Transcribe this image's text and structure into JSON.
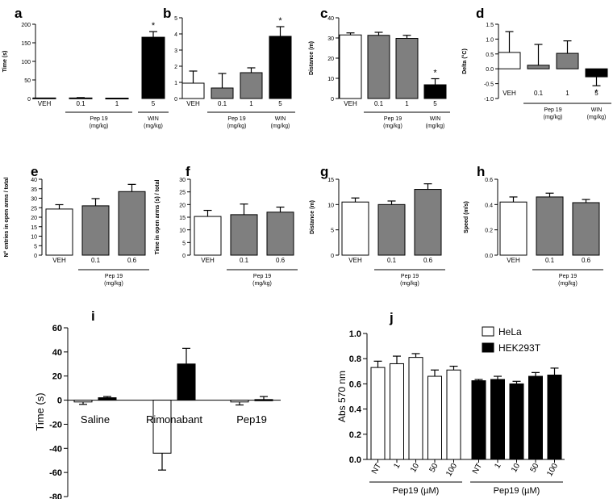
{
  "chart_data": [
    {
      "panel": "a",
      "type": "bar",
      "ylabel": "Time (s)",
      "ylim": [
        0,
        200
      ],
      "yticks": [
        0,
        50,
        100,
        150,
        200
      ],
      "categories": [
        "VEH",
        "0.1",
        "1",
        "5"
      ],
      "values": [
        1.5,
        1.5,
        1,
        165
      ],
      "errors": [
        0,
        1,
        0,
        15
      ],
      "fills": [
        "white",
        "gray",
        "gray",
        "black"
      ],
      "stars": [
        "",
        "",
        "",
        "*"
      ],
      "groups": [
        {
          "label": "Pep 19",
          "unit": "(mg/kg)",
          "from": 1,
          "to": 2
        },
        {
          "label": "WIN",
          "unit": "(mg/kg)",
          "from": 3,
          "to": 3
        }
      ]
    },
    {
      "panel": "b",
      "type": "bar",
      "ylabel": "Time (s)",
      "ylim": [
        0,
        5
      ],
      "yticks": [
        0,
        1,
        2,
        3,
        4,
        5
      ],
      "categories": [
        "VEH",
        "0.1",
        "1",
        "5"
      ],
      "values": [
        0.95,
        0.65,
        1.6,
        3.85
      ],
      "errors": [
        0.75,
        0.9,
        0.3,
        0.6
      ],
      "fills": [
        "white",
        "gray",
        "gray",
        "black"
      ],
      "stars": [
        "",
        "",
        "",
        "*"
      ],
      "groups": [
        {
          "label": "Pep 19",
          "unit": "(mg/kg)",
          "from": 1,
          "to": 2
        },
        {
          "label": "WIN",
          "unit": "(mg/kg)",
          "from": 3,
          "to": 3
        }
      ]
    },
    {
      "panel": "c",
      "type": "bar",
      "ylabel": "Distance (m)",
      "ylim": [
        0,
        40
      ],
      "yticks": [
        0,
        10,
        20,
        30,
        40
      ],
      "categories": [
        "VEH",
        "0.1",
        "1",
        "5"
      ],
      "values": [
        31.5,
        31.3,
        29.8,
        6.8
      ],
      "errors": [
        1,
        1.5,
        1.5,
        3
      ],
      "fills": [
        "white",
        "gray",
        "gray",
        "black"
      ],
      "stars": [
        "",
        "",
        "",
        "*"
      ],
      "groups": [
        {
          "label": "Pep 19",
          "unit": "(mg/kg)",
          "from": 1,
          "to": 2
        },
        {
          "label": "WIN",
          "unit": "(mg/kg)",
          "from": 3,
          "to": 3
        }
      ]
    },
    {
      "panel": "d",
      "type": "bar",
      "ylabel": "Delta (°C)",
      "ylim": [
        -1.0,
        1.5
      ],
      "yticks": [
        -1.0,
        -0.5,
        0.0,
        0.5,
        1.0,
        1.5
      ],
      "categories": [
        "VEH",
        "0.1",
        "1",
        "5"
      ],
      "values": [
        0.55,
        0.12,
        0.52,
        -0.27
      ],
      "errors": [
        0.7,
        0.7,
        0.42,
        0.3
      ],
      "fills": [
        "white",
        "gray",
        "gray",
        "black"
      ],
      "stars": [
        "",
        "",
        "",
        "*"
      ],
      "groups": [
        {
          "label": "Pep 19",
          "unit": "(mg/kg)",
          "from": 1,
          "to": 2
        },
        {
          "label": "WIN",
          "unit": "(mg/kg)",
          "from": 3,
          "to": 3
        }
      ]
    },
    {
      "panel": "e",
      "type": "bar",
      "ylabel": "N° entries in open arms / total",
      "ylim": [
        0,
        40
      ],
      "yticks": [
        0,
        5,
        10,
        15,
        20,
        25,
        30,
        35,
        40
      ],
      "categories": [
        "VEH",
        "0.1",
        "0.6"
      ],
      "values": [
        24.3,
        26,
        33.5
      ],
      "errors": [
        2.3,
        3.8,
        3.8
      ],
      "fills": [
        "white",
        "gray",
        "gray"
      ],
      "stars": [
        "",
        "",
        ""
      ],
      "groups": [
        {
          "label": "Pep 19",
          "unit": "(mg/kg)",
          "from": 1,
          "to": 2
        }
      ]
    },
    {
      "panel": "f",
      "type": "bar",
      "ylabel": "Time in open arms (s) / total",
      "ylim": [
        0,
        30
      ],
      "yticks": [
        0,
        5,
        10,
        15,
        20,
        25,
        30
      ],
      "categories": [
        "VEH",
        "0.1",
        "0.6"
      ],
      "values": [
        15.3,
        16,
        17
      ],
      "errors": [
        2.4,
        4.2,
        2
      ],
      "fills": [
        "white",
        "gray",
        "gray"
      ],
      "stars": [
        "",
        "",
        ""
      ],
      "groups": [
        {
          "label": "Pep 19",
          "unit": "(mg/kg)",
          "from": 1,
          "to": 2
        }
      ]
    },
    {
      "panel": "g",
      "type": "bar",
      "ylabel": "Distance (m)",
      "ylim": [
        0,
        15
      ],
      "yticks": [
        0,
        5,
        10,
        15
      ],
      "categories": [
        "VEH",
        "0.1",
        "0.6"
      ],
      "values": [
        10.5,
        10,
        13
      ],
      "errors": [
        0.8,
        0.7,
        1.1
      ],
      "fills": [
        "white",
        "gray",
        "gray"
      ],
      "stars": [
        "",
        "",
        ""
      ],
      "groups": [
        {
          "label": "Pep 19",
          "unit": "(mg/kg)",
          "from": 1,
          "to": 2
        }
      ]
    },
    {
      "panel": "h",
      "type": "bar",
      "ylabel": "Speed (m/s)",
      "ylim": [
        0,
        0.6
      ],
      "yticks": [
        0.0,
        0.2,
        0.4,
        0.6
      ],
      "categories": [
        "VEH",
        "0.1",
        "0.6"
      ],
      "values": [
        0.42,
        0.46,
        0.415
      ],
      "errors": [
        0.04,
        0.03,
        0.025
      ],
      "fills": [
        "white",
        "gray",
        "gray"
      ],
      "stars": [
        "",
        "",
        ""
      ],
      "groups": [
        {
          "label": "Pep 19",
          "unit": "(mg/kg)",
          "from": 1,
          "to": 2
        }
      ]
    },
    {
      "panel": "i",
      "type": "bar",
      "ylabel": "Time (s)",
      "ylim": [
        -80,
        60
      ],
      "yticks": [
        -80,
        -60,
        -40,
        -20,
        0,
        20,
        40,
        60
      ],
      "groups": [
        "Saline",
        "Rimonabant",
        "Pep19"
      ],
      "series": [
        {
          "fill": "white",
          "values": [
            -1.5,
            -44,
            -1.5
          ],
          "errors": [
            2,
            14,
            2.5
          ]
        },
        {
          "fill": "black",
          "values": [
            2,
            30,
            0.5
          ],
          "errors": [
            1,
            13,
            2.5
          ]
        }
      ]
    },
    {
      "panel": "j",
      "type": "bar",
      "ylabel": "Abs 570 nm",
      "ylim": [
        0,
        1.0
      ],
      "yticks": [
        0.0,
        0.2,
        0.4,
        0.6,
        0.8,
        1.0
      ],
      "legend": [
        {
          "name": "HeLa",
          "fill": "white"
        },
        {
          "name": "HEK293T",
          "fill": "black"
        }
      ],
      "blocks": [
        {
          "series": "HeLa",
          "fill": "white",
          "categories": [
            "NT",
            "1",
            "10",
            "50",
            "100"
          ],
          "values": [
            0.73,
            0.76,
            0.81,
            0.66,
            0.71
          ],
          "errors": [
            0.05,
            0.06,
            0.03,
            0.05,
            0.03
          ],
          "group_label": "Pep19 (µM)"
        },
        {
          "series": "HEK293T",
          "fill": "black",
          "categories": [
            "NT",
            "1",
            "10",
            "50",
            "100"
          ],
          "values": [
            0.625,
            0.635,
            0.6,
            0.66,
            0.67
          ],
          "errors": [
            0.01,
            0.025,
            0.02,
            0.03,
            0.055
          ],
          "group_label": "Pep19 (µM)"
        }
      ]
    }
  ]
}
